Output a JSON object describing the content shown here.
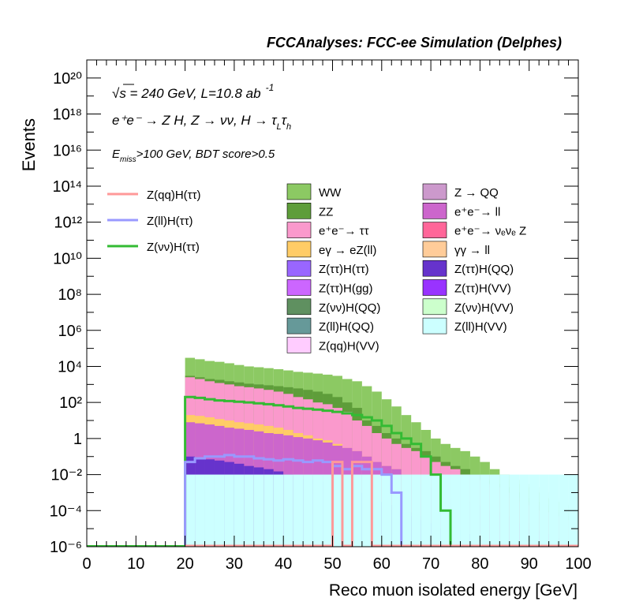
{
  "header": {
    "title": "FCCAnalyses: FCC-ee Simulation (Delphes)",
    "line1": "√s = 240 GeV, L=10.8 ab",
    "line1_sup": "-1",
    "line2": "e⁺e⁻ → Z H, Z → νν, H → τ",
    "line2_sub1": "L",
    "line2_tau": "τ",
    "line2_sub2": "h",
    "line3_pre": "E",
    "line3_sub": "miss",
    "line3_post": ">100 GeV, BDT score>0.5"
  },
  "chart_data": {
    "type": "histogram",
    "title": "FCCAnalyses: FCC-ee Simulation (Delphes)",
    "xlabel": "Reco muon isolated energy [GeV]",
    "ylabel": "Events",
    "xlim": [
      0,
      100
    ],
    "ylim": [
      1e-06,
      1e+21
    ],
    "log_y": true,
    "x_ticks": [
      0,
      10,
      20,
      30,
      40,
      50,
      60,
      70,
      80,
      90,
      100
    ],
    "y_ticks": [
      "10⁻⁶",
      "10⁻⁴",
      "10⁻²",
      "1",
      "10²",
      "10⁴",
      "10⁶",
      "10⁸",
      "10¹⁰",
      "10¹²",
      "10¹⁴",
      "10¹⁶",
      "10¹⁸",
      "10²⁰"
    ],
    "bin_edges_start": 20,
    "bin_width": 2,
    "stacked_backgrounds": [
      {
        "name": "WW",
        "color": "#8cc963",
        "top": [
          30000,
          25000,
          20000,
          18000,
          15000,
          12000,
          10000,
          9000,
          8000,
          7000,
          6000,
          5000,
          4500,
          4000,
          3500,
          3000,
          2000,
          1500,
          800,
          400,
          150,
          60,
          20,
          8,
          3,
          1,
          0.5,
          0.3,
          0.2,
          0.1,
          0.05,
          0.02,
          0.01,
          0.005,
          0.003,
          0.002,
          0.001,
          0.0005,
          0.0003,
          0.0002
        ]
      },
      {
        "name": "ZZ",
        "color": "#5e9d3a",
        "top": [
          3000,
          2500,
          2000,
          1800,
          1500,
          1300,
          1100,
          1000,
          900,
          800,
          700,
          600,
          500,
          400,
          300,
          200,
          100,
          50,
          10,
          5,
          2,
          1,
          0.5,
          0.3,
          0.2,
          0.1,
          0.05,
          0.03,
          0.02,
          0.01,
          0.005,
          0.003,
          0.002,
          0.001,
          0.0005,
          0.0003,
          0.0002,
          0.0001,
          8e-05,
          5e-05
        ]
      },
      {
        "name": "e⁺e⁻→ ττ",
        "color": "#fa99cc",
        "top": [
          2500,
          2000,
          1500,
          1200,
          1000,
          800,
          700,
          600,
          500,
          400,
          300,
          200,
          150,
          100,
          80,
          50,
          30,
          10,
          5,
          2,
          1,
          0.5,
          0.3,
          0.2,
          0.1,
          0.05,
          0.03,
          0.02,
          0.01,
          0.005,
          0.003,
          0.002,
          0.001,
          0.0005,
          0.0003,
          0.0002,
          0.0001,
          8e-05,
          5e-05,
          3e-05
        ]
      },
      {
        "name": "eγ → eZ(ll)",
        "color": "#ffcc66",
        "top": [
          20,
          18,
          15,
          12,
          10,
          8,
          7,
          6,
          5,
          4,
          3,
          2,
          1.5,
          1,
          0.8,
          0.5,
          0.3,
          0.2,
          0.1,
          0.05,
          0.03,
          0.02,
          0.01,
          0.005,
          0.003,
          0.002,
          0.001,
          0.0005,
          0.0003,
          0.0002,
          0.0001,
          8e-05,
          5e-05,
          3e-05,
          2e-05,
          1e-05,
          8e-06,
          5e-06,
          3e-06,
          2e-06
        ]
      },
      {
        "name": "e⁺e⁻→ ll",
        "color": "#cc66cc",
        "top": [
          8,
          7,
          6,
          5,
          4,
          3.5,
          3,
          2.5,
          2,
          1.8,
          1.5,
          1.2,
          1,
          0.8,
          0.6,
          0.4,
          0.3,
          0.2,
          0.1,
          0.05,
          0.03,
          0.02,
          0.01,
          0.005,
          0.003,
          0.002,
          0.001,
          0.0005,
          0.0003,
          0.0002,
          0.0001,
          8e-05,
          5e-05,
          3e-05,
          2e-05,
          1e-05,
          8e-06,
          5e-06,
          3e-06,
          2e-06
        ]
      },
      {
        "name": "Z(ττ)H(QQ)",
        "color": "#6633cc",
        "top": [
          0.1,
          0.08,
          0.07,
          0.06,
          0.05,
          0.04,
          0.03,
          0.025,
          0.02,
          0.015,
          0.01,
          0.008,
          0.006,
          0.005,
          0.004,
          0.003,
          0.002,
          0.001,
          0.0005,
          0.0003,
          0.0002,
          0.0001,
          8e-05,
          5e-05,
          3e-05,
          2e-05,
          1e-05,
          8e-06,
          5e-06,
          3e-06,
          2e-06,
          1e-06,
          8e-07,
          5e-07,
          3e-07,
          2e-07,
          1e-07,
          8e-08,
          5e-08,
          3e-08
        ]
      },
      {
        "name": "Z(ll)H(VV)",
        "color": "#ccffff",
        "top": [
          0.01,
          0.01,
          0.01,
          0.01,
          0.01,
          0.01,
          0.01,
          0.01,
          0.01,
          0.01,
          0.01,
          0.01,
          0.01,
          0.01,
          0.01,
          0.01,
          0.01,
          0.01,
          0.01,
          0.01,
          0.01,
          0.01,
          0.01,
          0.01,
          0.01,
          0.01,
          0.01,
          0.01,
          0.01,
          0.01,
          0.01,
          0.01,
          0.01,
          0.01,
          0.01,
          0.01,
          0.01,
          0.01,
          0.01,
          0.01
        ]
      }
    ],
    "legend_left": [
      {
        "name": "Z(qq)H(ττ)",
        "color": "#ff9999"
      },
      {
        "name": "Z(ll)H(ττ)",
        "color": "#9999ff"
      },
      {
        "name": "Z(νν)H(ττ)",
        "color": "#33bb33"
      }
    ],
    "legend_col1": [
      {
        "name": "WW",
        "color": "#8cc963"
      },
      {
        "name": "ZZ",
        "color": "#5e9d3a"
      },
      {
        "name": "e⁺e⁻→ ττ",
        "color": "#fa99cc"
      },
      {
        "name": "eγ → eZ(ll)",
        "color": "#ffcc66"
      },
      {
        "name": "Z(ττ)H(ττ)",
        "color": "#9966ff"
      },
      {
        "name": "Z(ττ)H(gg)",
        "color": "#cc66ff"
      },
      {
        "name": "Z(νν)H(QQ)",
        "color": "#5f9060"
      },
      {
        "name": "Z(ll)H(QQ)",
        "color": "#669999"
      },
      {
        "name": "Z(qq)H(VV)",
        "color": "#ffccff"
      }
    ],
    "legend_col2": [
      {
        "name": "Z → QQ",
        "color": "#cc99cc"
      },
      {
        "name": "e⁺e⁻→ ll",
        "color": "#cc66cc"
      },
      {
        "name": "e⁺e⁻→ νₑνₑ Z",
        "color": "#ff6699"
      },
      {
        "name": "γγ → ll",
        "color": "#ffcc99"
      },
      {
        "name": "Z(ττ)H(QQ)",
        "color": "#6633cc"
      },
      {
        "name": "Z(ττ)H(VV)",
        "color": "#9933ff"
      },
      {
        "name": "Z(νν)H(VV)",
        "color": "#ccffcc"
      },
      {
        "name": "Z(ll)H(VV)",
        "color": "#ccffff"
      }
    ],
    "signal_lines": [
      {
        "name": "Z(νν)H(ττ)",
        "color": "#33bb33",
        "x_start": 20,
        "bin_width": 2,
        "values": [
          200,
          180,
          150,
          130,
          120,
          110,
          100,
          90,
          80,
          70,
          60,
          50,
          45,
          40,
          35,
          30,
          25,
          20,
          15,
          10,
          5,
          2,
          1,
          0.5,
          0.1,
          0.01,
          0.0001,
          1e-06,
          1e-06,
          1e-06,
          1e-06,
          1e-06,
          1e-06,
          1e-06,
          1e-06,
          1e-06,
          1e-06,
          1e-06,
          1e-06,
          1e-06
        ]
      },
      {
        "name": "Z(ll)H(ττ)",
        "color": "#9999ff",
        "x_start": 20,
        "bin_width": 2,
        "values": [
          0.05,
          0.08,
          0.1,
          0.1,
          0.12,
          0.1,
          0.1,
          0.08,
          0.07,
          0.06,
          0.07,
          0.06,
          0.05,
          0.06,
          0.05,
          0.03,
          0.02,
          0.03,
          0.02,
          0.02,
          0.01,
          0.001,
          1e-06,
          1e-06,
          1e-06,
          1e-06,
          1e-06,
          1e-06,
          1e-06,
          1e-06,
          1e-06,
          1e-06,
          1e-06,
          1e-06,
          1e-06,
          1e-06,
          1e-06,
          1e-06,
          1e-06,
          1e-06
        ]
      },
      {
        "name": "Z(qq)H(ττ)",
        "color": "#ff9999",
        "x_start": 20,
        "bin_width": 2,
        "values": [
          1e-06,
          1e-06,
          1e-06,
          1e-06,
          1e-06,
          1e-06,
          1e-06,
          1e-06,
          1e-06,
          1e-06,
          1e-06,
          1e-06,
          1e-06,
          1e-06,
          1e-06,
          0.05,
          1e-06,
          0.05,
          0.05,
          1e-06,
          1e-06,
          1e-06,
          1e-06,
          1e-06,
          1e-06,
          1e-06,
          1e-06,
          1e-06,
          1e-06,
          1e-06,
          1e-06,
          1e-06,
          1e-06,
          1e-06,
          1e-06,
          1e-06,
          1e-06,
          1e-06,
          1e-06,
          1e-06
        ]
      }
    ]
  }
}
